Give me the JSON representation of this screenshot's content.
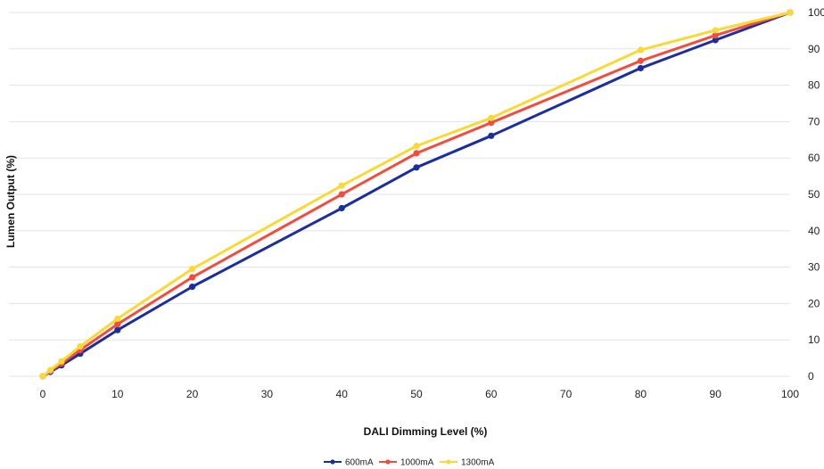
{
  "chart_data": {
    "type": "line",
    "xlabel": "DALI Dimming Level (%)",
    "ylabel": "Lumen Output (%)",
    "x_ticks": [
      "0",
      "10",
      "20",
      "30",
      "40",
      "50",
      "60",
      "70",
      "80",
      "90",
      "100"
    ],
    "y_ticks": [
      "0",
      "10",
      "20",
      "30",
      "40",
      "50",
      "60",
      "70",
      "80",
      "90",
      "100"
    ],
    "xlim": [
      0,
      100
    ],
    "ylim": [
      0,
      100
    ],
    "y_axis_side": "right",
    "grid": "horizontal",
    "legend_position": "bottom",
    "x": [
      0,
      1,
      2.5,
      5,
      10,
      20,
      40,
      50,
      60,
      80,
      90,
      100
    ],
    "series": [
      {
        "name": "600mA",
        "color": "#1a2ea0",
        "values": [
          0,
          1.2,
          3,
          6.2,
          12.7,
          24.6,
          46.2,
          57.4,
          66.1,
          84.7,
          92.4,
          100
        ]
      },
      {
        "name": "1000mA",
        "color": "#f44b3f",
        "values": [
          0,
          1.4,
          3.5,
          7.2,
          14.3,
          27.2,
          50,
          61.3,
          69.7,
          86.7,
          93.7,
          100
        ]
      },
      {
        "name": "1300mA",
        "color": "#f9d936",
        "values": [
          0,
          1.7,
          4.1,
          8.2,
          15.8,
          29.5,
          52.4,
          63.3,
          71,
          89.7,
          95.1,
          100
        ]
      }
    ]
  }
}
